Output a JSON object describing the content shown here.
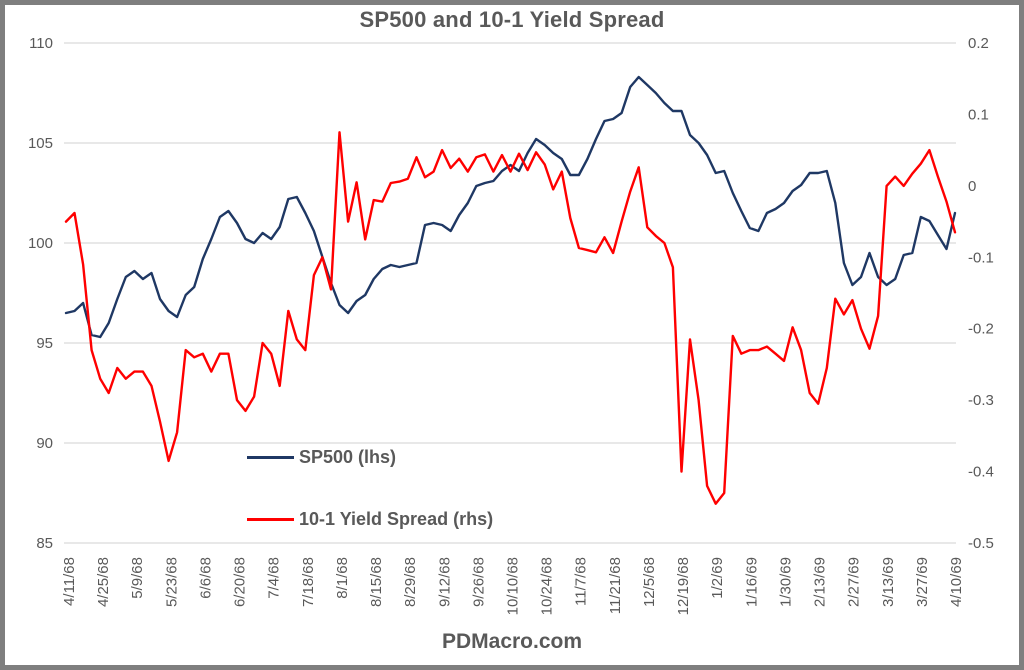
{
  "footer": {
    "text": "PDMacro.com"
  },
  "chart_data": {
    "type": "line",
    "title": "SP500 and 10-1 Yield Spread",
    "grid": "horizontal",
    "legend_position": "inside-lower-left",
    "colors": {
      "sp500_line": "#1f3864",
      "spread_line": "#ff0000",
      "gridline": "#d9d9d9",
      "axis_text": "#595959",
      "frame_border": "#7f7f7f",
      "background": "#ffffff"
    },
    "left_axis": {
      "side": "left",
      "min": 85,
      "max": 110,
      "ticks": [
        110,
        105,
        100,
        95,
        90,
        85
      ],
      "ticklabels": [
        "110",
        "105",
        "100",
        "95",
        "90",
        "85"
      ]
    },
    "right_axis": {
      "side": "right",
      "min": -0.5,
      "max": 0.2,
      "ticks": [
        0.2,
        0.1,
        0,
        -0.1,
        -0.2,
        -0.3,
        -0.4,
        -0.5
      ],
      "ticklabels": [
        "0.2",
        "0.1",
        "0",
        "-0.1",
        "-0.2",
        "-0.3",
        "-0.4",
        "-0.5"
      ]
    },
    "x_ticklabels": [
      "4/11/68",
      "4/25/68",
      "5/9/68",
      "5/23/68",
      "6/6/68",
      "6/20/68",
      "7/4/68",
      "7/18/68",
      "8/1/68",
      "8/15/68",
      "8/29/68",
      "9/12/68",
      "9/26/68",
      "10/10/68",
      "10/24/68",
      "11/7/68",
      "11/21/68",
      "12/5/68",
      "12/19/68",
      "1/2/69",
      "1/16/69",
      "1/30/69",
      "2/13/69",
      "2/27/69",
      "3/13/69",
      "3/27/69",
      "4/10/69"
    ],
    "x_range_note": "daily data from 4/11/68 to 4/10/69, sampled ~every 3.5 days below",
    "series": [
      {
        "name": "SP500 (lhs)",
        "axis": "left",
        "color": "#1f3864",
        "values": [
          96.5,
          96.6,
          97.0,
          95.4,
          95.3,
          96.0,
          97.2,
          98.3,
          98.6,
          98.2,
          98.5,
          97.2,
          96.6,
          96.3,
          97.4,
          97.8,
          99.2,
          100.2,
          101.3,
          101.6,
          101.0,
          100.2,
          100.0,
          100.5,
          100.2,
          100.8,
          102.2,
          102.3,
          101.5,
          100.6,
          99.3,
          98.0,
          96.9,
          96.5,
          97.1,
          97.4,
          98.2,
          98.7,
          98.9,
          98.8,
          98.9,
          99.0,
          100.9,
          101.0,
          100.9,
          100.6,
          101.4,
          102.0,
          102.85,
          103.0,
          103.1,
          103.6,
          103.9,
          103.6,
          104.5,
          105.2,
          104.9,
          104.5,
          104.2,
          103.4,
          103.4,
          104.2,
          105.2,
          106.1,
          106.2,
          106.5,
          107.8,
          108.3,
          107.9,
          107.5,
          107.0,
          106.6,
          106.6,
          105.4,
          105.0,
          104.4,
          103.5,
          103.6,
          102.5,
          101.6,
          100.75,
          100.6,
          101.5,
          101.7,
          102.0,
          102.6,
          102.9,
          103.5,
          103.5,
          103.6,
          102.0,
          99.0,
          97.9,
          98.3,
          99.5,
          98.3,
          97.9,
          98.2,
          99.4,
          99.5,
          101.3,
          101.1,
          100.4,
          99.7,
          101.5
        ]
      },
      {
        "name": "10-1 Yield Spread (rhs)",
        "axis": "right",
        "color": "#ff0000",
        "values": [
          -0.05,
          -0.038,
          -0.11,
          -0.23,
          -0.27,
          -0.29,
          -0.255,
          -0.27,
          -0.26,
          -0.26,
          -0.28,
          -0.33,
          -0.385,
          -0.345,
          -0.23,
          -0.24,
          -0.235,
          -0.26,
          -0.235,
          -0.235,
          -0.3,
          -0.315,
          -0.295,
          -0.22,
          -0.235,
          -0.28,
          -0.175,
          -0.215,
          -0.23,
          -0.125,
          -0.1,
          -0.145,
          0.075,
          -0.05,
          0.005,
          -0.075,
          -0.02,
          -0.022,
          0.004,
          0.006,
          0.01,
          0.04,
          0.012,
          0.02,
          0.05,
          0.025,
          0.038,
          0.02,
          0.04,
          0.044,
          0.02,
          0.043,
          0.02,
          0.045,
          0.022,
          0.047,
          0.03,
          -0.005,
          0.02,
          -0.045,
          -0.087,
          -0.09,
          -0.093,
          -0.072,
          -0.094,
          -0.05,
          -0.008,
          0.026,
          -0.058,
          -0.07,
          -0.08,
          -0.114,
          -0.4,
          -0.215,
          -0.3,
          -0.42,
          -0.445,
          -0.43,
          -0.21,
          -0.235,
          -0.23,
          -0.23,
          -0.225,
          -0.235,
          -0.245,
          -0.198,
          -0.23,
          -0.29,
          -0.305,
          -0.255,
          -0.158,
          -0.18,
          -0.16,
          -0.2,
          -0.228,
          -0.182,
          0.0,
          0.013,
          0.0,
          0.017,
          0.031,
          0.05,
          0.013,
          -0.022,
          -0.065
        ]
      }
    ]
  }
}
